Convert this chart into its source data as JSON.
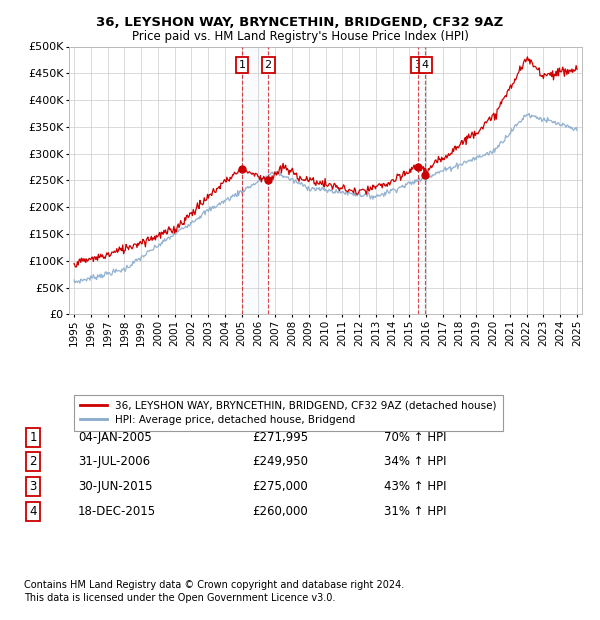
{
  "title1": "36, LEYSHON WAY, BRYNCETHIN, BRIDGEND, CF32 9AZ",
  "title2": "Price paid vs. HM Land Registry's House Price Index (HPI)",
  "ylim": [
    0,
    500000
  ],
  "yticks": [
    0,
    50000,
    100000,
    150000,
    200000,
    250000,
    300000,
    350000,
    400000,
    450000,
    500000
  ],
  "ytick_labels": [
    "£0",
    "£50K",
    "£100K",
    "£150K",
    "£200K",
    "£250K",
    "£300K",
    "£350K",
    "£400K",
    "£450K",
    "£500K"
  ],
  "legend_property_label": "36, LEYSHON WAY, BRYNCETHIN, BRIDGEND, CF32 9AZ (detached house)",
  "legend_hpi_label": "HPI: Average price, detached house, Bridgend",
  "property_color": "#cc0000",
  "hpi_color": "#88aacc",
  "sale_color": "#cc0000",
  "transactions": [
    {
      "num": 1,
      "date_x": 2005.01,
      "price": 271995,
      "label": "04-JAN-2005",
      "pct": "70%",
      "dir": "↑"
    },
    {
      "num": 2,
      "date_x": 2006.58,
      "price": 249950,
      "label": "31-JUL-2006",
      "pct": "34%",
      "dir": "↑"
    },
    {
      "num": 3,
      "date_x": 2015.49,
      "price": 275000,
      "label": "30-JUN-2015",
      "pct": "43%",
      "dir": "↑"
    },
    {
      "num": 4,
      "date_x": 2015.96,
      "price": 260000,
      "label": "18-DEC-2015",
      "pct": "31%",
      "dir": "↑"
    }
  ],
  "footer1": "Contains HM Land Registry data © Crown copyright and database right 2024.",
  "footer2": "This data is licensed under the Open Government Licence v3.0.",
  "background_color": "#ffffff",
  "grid_color": "#cccccc",
  "xlim_min": 1994.7,
  "xlim_max": 2025.3,
  "xtick_start": 1995,
  "xtick_end": 2025
}
